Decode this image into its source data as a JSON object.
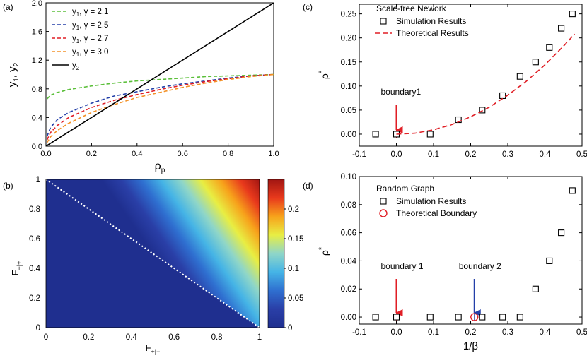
{
  "colors": {
    "green": "#5bbf3a",
    "blue": "#233fa8",
    "red": "#e01e25",
    "orange": "#f39126",
    "black": "#000000",
    "colormap": [
      "#1f2f8f",
      "#2a3fa7",
      "#2f6fd0",
      "#45b4e6",
      "#8fd6c8",
      "#e8ee43",
      "#f7a21b",
      "#e8391c",
      "#a11512"
    ]
  },
  "chart_data": [
    {
      "panel": "(a)",
      "type": "line",
      "xlabel_main": "ρ",
      "xlabel_sub": "p",
      "ylabel": "y1, y2",
      "ylabel_parts": {
        "a": "y",
        "a_sub": "1",
        "sep": ", ",
        "b": "y",
        "b_sub": "2"
      },
      "xlim": [
        0,
        1.0
      ],
      "ylim": [
        0,
        2.0
      ],
      "xticks": [
        "0.0",
        "0.2",
        "0.4",
        "0.6",
        "0.8",
        "1.0"
      ],
      "yticks": [
        "0.0",
        "0.4",
        "0.8",
        "1.2",
        "1.6",
        "2.0"
      ],
      "series": [
        {
          "name": "y1, γ = 2.1",
          "label_main": "y",
          "label_sub": "1",
          "label_rest": ", γ = 2.1",
          "color": "#5bbf3a",
          "dash": true,
          "x": [
            0.005,
            0.02,
            0.05,
            0.1,
            0.2,
            0.3,
            0.4,
            0.5,
            0.6,
            0.7,
            0.8,
            0.9,
            1.0
          ],
          "y": [
            0.66,
            0.71,
            0.75,
            0.79,
            0.84,
            0.88,
            0.91,
            0.93,
            0.95,
            0.97,
            0.98,
            0.99,
            1.0
          ]
        },
        {
          "name": "y1, γ = 2.5",
          "label_main": "y",
          "label_sub": "1",
          "label_rest": ", γ = 2.5",
          "color": "#233fa8",
          "dash": true,
          "x": [
            0.005,
            0.02,
            0.05,
            0.1,
            0.2,
            0.3,
            0.4,
            0.5,
            0.6,
            0.7,
            0.8,
            0.9,
            1.0
          ],
          "y": [
            0.14,
            0.26,
            0.37,
            0.47,
            0.6,
            0.7,
            0.76,
            0.82,
            0.87,
            0.91,
            0.95,
            0.98,
            1.0
          ]
        },
        {
          "name": "y1, γ = 2.7",
          "label_main": "y",
          "label_sub": "1",
          "label_rest": ", γ = 2.7",
          "color": "#e01e25",
          "dash": true,
          "x": [
            0.005,
            0.02,
            0.05,
            0.1,
            0.2,
            0.3,
            0.4,
            0.5,
            0.6,
            0.7,
            0.8,
            0.9,
            1.0
          ],
          "y": [
            0.09,
            0.19,
            0.29,
            0.4,
            0.54,
            0.64,
            0.72,
            0.79,
            0.85,
            0.9,
            0.94,
            0.98,
            1.0
          ]
        },
        {
          "name": "y1, γ = 3.0",
          "label_main": "y",
          "label_sub": "1",
          "label_rest": ", γ = 3.0",
          "color": "#f39126",
          "dash": true,
          "x": [
            0.005,
            0.02,
            0.05,
            0.1,
            0.2,
            0.3,
            0.4,
            0.5,
            0.6,
            0.7,
            0.8,
            0.9,
            1.0
          ],
          "y": [
            0.05,
            0.13,
            0.22,
            0.32,
            0.47,
            0.58,
            0.68,
            0.75,
            0.82,
            0.88,
            0.93,
            0.97,
            1.0
          ]
        },
        {
          "name": "y2",
          "label_main": "y",
          "label_sub": "2",
          "label_rest": "",
          "color": "#000000",
          "dash": false,
          "x": [
            0,
            1.0
          ],
          "y": [
            0,
            2.0
          ]
        }
      ]
    },
    {
      "panel": "(b)",
      "type": "heatmap",
      "xlabel_main": "F",
      "xlabel_sub": "+|−",
      "ylabel_main": "F",
      "ylabel_sub": "−|+",
      "xlim": [
        0,
        1
      ],
      "ylim": [
        0,
        1
      ],
      "xticks": [
        "0",
        "0.2",
        "0.4",
        "0.6",
        "0.8",
        "1"
      ],
      "yticks": [
        "0",
        "0.2",
        "0.4",
        "0.6",
        "0.8",
        "1"
      ],
      "colorbar_ticks": [
        "0",
        "0.05",
        "0.1",
        "0.15",
        "0.2"
      ],
      "colorbar_range": [
        0,
        0.25
      ],
      "boundary_line": {
        "x": [
          0,
          1
        ],
        "y": [
          1,
          0
        ],
        "style": "white dotted"
      }
    },
    {
      "panel": "(c)",
      "type": "scatter",
      "xlim": [
        -0.1,
        0.5
      ],
      "ylim": [
        -0.025,
        0.27
      ],
      "ylabel_main": "ρ",
      "ylabel_sup": "*",
      "xticks": [
        "-0.1",
        "0.0",
        "0.1",
        "0.2",
        "0.3",
        "0.4",
        "0.5"
      ],
      "yticks": [
        "0.00",
        "0.05",
        "0.10",
        "0.15",
        "0.20",
        "0.25"
      ],
      "legend_title": "Scale-free Nework",
      "series": [
        {
          "name": "Simulation  Results",
          "marker": "square",
          "x": [
            -0.056,
            0,
            0.091,
            0.167,
            0.231,
            0.286,
            0.333,
            0.375,
            0.412,
            0.444,
            0.474
          ],
          "y": [
            0,
            0,
            0,
            0.03,
            0.05,
            0.08,
            0.12,
            0.15,
            0.18,
            0.22,
            0.25
          ]
        },
        {
          "name": "Theoretical Results",
          "line": "dashed",
          "color": "#e01e25",
          "x": [
            0,
            0.05,
            0.1,
            0.15,
            0.2,
            0.25,
            0.3,
            0.35,
            0.4,
            0.45,
            0.48
          ],
          "y": [
            0,
            0.002,
            0.009,
            0.02,
            0.036,
            0.056,
            0.081,
            0.11,
            0.144,
            0.183,
            0.208
          ]
        }
      ],
      "annotations": [
        {
          "text": "boundary1",
          "x": 0.0,
          "color": "#e01e25"
        }
      ]
    },
    {
      "panel": "(d)",
      "type": "scatter",
      "xlim": [
        -0.1,
        0.5
      ],
      "ylim": [
        -0.005,
        0.1
      ],
      "xlabel": "1/β",
      "ylabel_main": "ρ",
      "ylabel_sup": "*",
      "xticks": [
        "-0.1",
        "0.0",
        "0.1",
        "0.2",
        "0.3",
        "0.4",
        "0.5"
      ],
      "yticks": [
        "0.00",
        "0.02",
        "0.04",
        "0.06",
        "0.08",
        "0.10"
      ],
      "legend_title": "Random Graph",
      "series": [
        {
          "name": "Simulation  Results",
          "marker": "square",
          "x": [
            -0.056,
            0,
            0.091,
            0.167,
            0.231,
            0.286,
            0.333,
            0.375,
            0.412,
            0.444,
            0.474
          ],
          "y": [
            0,
            0,
            0,
            0,
            0,
            0,
            0,
            0.02,
            0.04,
            0.06,
            0.09
          ]
        },
        {
          "name": "Theoretical Boundary",
          "marker": "circle",
          "color": "#e01e25",
          "x": [
            0.21
          ],
          "y": [
            0
          ]
        }
      ],
      "annotations": [
        {
          "text": "boundary 1",
          "x": 0.0,
          "color": "#e01e25"
        },
        {
          "text": "boundary 2",
          "x": 0.21,
          "color": "#233fa8"
        }
      ]
    }
  ]
}
